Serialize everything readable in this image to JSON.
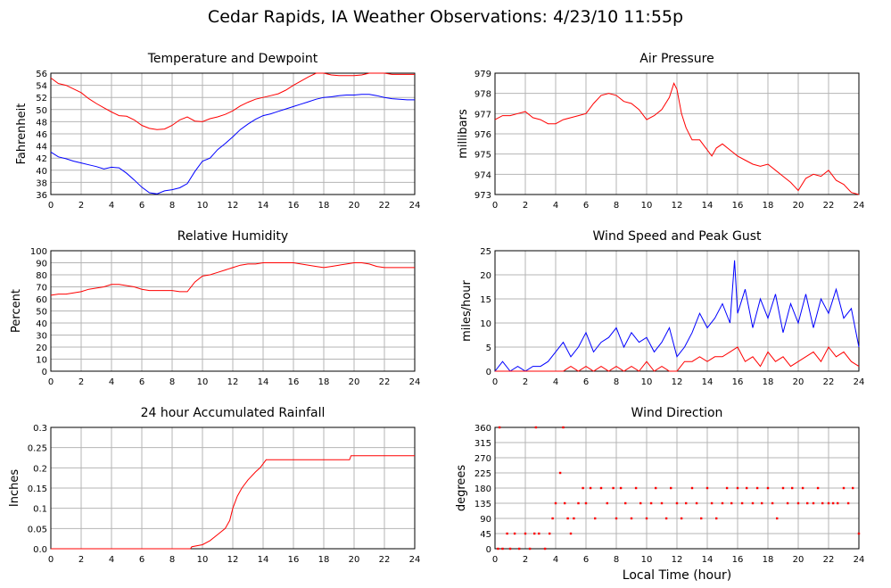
{
  "title": "Cedar Rapids, IA Weather Observations: 4/23/10 11:55p",
  "xlabel_shared": "Local Time (hour)",
  "colors": {
    "red": "#ff0000",
    "blue": "#0000ff",
    "grid": "#b4b4b4",
    "axis": "#000000"
  },
  "chart_data": [
    {
      "type": "line",
      "title": "Temperature and Dewpoint",
      "xlabel": "",
      "ylabel": "Fahrenheit",
      "xlim": [
        0,
        24
      ],
      "ylim": [
        36,
        56
      ],
      "xticks": [
        0,
        2,
        4,
        6,
        8,
        10,
        12,
        14,
        16,
        18,
        20,
        22,
        24
      ],
      "yticks": [
        36,
        38,
        40,
        42,
        44,
        46,
        48,
        50,
        52,
        54,
        56
      ],
      "grid": true,
      "series": [
        {
          "color": "#ff0000",
          "x": [
            0,
            0.5,
            1,
            1.5,
            2,
            2.5,
            3,
            3.5,
            4,
            4.5,
            5,
            5.5,
            6,
            6.5,
            7,
            7.5,
            8,
            8.5,
            9,
            9.5,
            10,
            10.5,
            11,
            11.5,
            12,
            12.5,
            13,
            13.5,
            14,
            14.5,
            15,
            15.5,
            16,
            16.5,
            17,
            17.5,
            18,
            18.5,
            19,
            19.5,
            20,
            20.5,
            21,
            21.5,
            22,
            22.5,
            23,
            23.5,
            24
          ],
          "y": [
            55.2,
            54.3,
            54,
            53.4,
            52.8,
            51.8,
            51,
            50.3,
            49.6,
            49,
            48.9,
            48.3,
            47.4,
            46.9,
            46.7,
            46.8,
            47.4,
            48.3,
            48.8,
            48.1,
            48,
            48.5,
            48.8,
            49.2,
            49.8,
            50.6,
            51.2,
            51.7,
            52,
            52.3,
            52.6,
            53.2,
            54,
            54.7,
            55.4,
            56,
            56,
            55.7,
            55.6,
            55.6,
            55.6,
            55.7,
            56,
            56,
            56,
            55.8,
            55.8,
            55.8,
            55.8
          ]
        },
        {
          "color": "#0000ff",
          "x": [
            0,
            0.5,
            1,
            1.5,
            2,
            2.5,
            3,
            3.5,
            4,
            4.5,
            5,
            5.5,
            6,
            6.5,
            7,
            7.5,
            8,
            8.5,
            9,
            9.5,
            10,
            10.5,
            11,
            11.5,
            12,
            12.5,
            13,
            13.5,
            14,
            14.5,
            15,
            15.5,
            16,
            16.5,
            17,
            17.5,
            18,
            18.5,
            19,
            19.5,
            20,
            20.5,
            21,
            21.5,
            22,
            22.5,
            23,
            23.5,
            24
          ],
          "y": [
            43,
            42.2,
            41.9,
            41.5,
            41.2,
            40.9,
            40.6,
            40.2,
            40.5,
            40.4,
            39.5,
            38.4,
            37.2,
            36.3,
            36.1,
            36.6,
            36.8,
            37.1,
            37.8,
            39.8,
            41.5,
            42,
            43.4,
            44.4,
            45.5,
            46.7,
            47.6,
            48.4,
            49,
            49.3,
            49.7,
            50.1,
            50.5,
            50.9,
            51.3,
            51.7,
            52,
            52.1,
            52.3,
            52.4,
            52.4,
            52.5,
            52.5,
            52.3,
            52,
            51.8,
            51.7,
            51.6,
            51.6
          ]
        }
      ]
    },
    {
      "type": "line",
      "title": "Air Pressure",
      "xlabel": "",
      "ylabel": "millibars",
      "xlim": [
        0,
        24
      ],
      "ylim": [
        973,
        979
      ],
      "xticks": [
        0,
        2,
        4,
        6,
        8,
        10,
        12,
        14,
        16,
        18,
        20,
        22,
        24
      ],
      "yticks": [
        973,
        974,
        975,
        976,
        977,
        978,
        979
      ],
      "grid": true,
      "series": [
        {
          "color": "#ff0000",
          "x": [
            0,
            0.5,
            1,
            1.5,
            2,
            2.5,
            3,
            3.5,
            4,
            4.5,
            5,
            5.5,
            6,
            6.5,
            7,
            7.5,
            8,
            8.5,
            9,
            9.5,
            10,
            10.5,
            11,
            11.5,
            11.8,
            12,
            12.3,
            12.6,
            13,
            13.5,
            14,
            14.3,
            14.6,
            15,
            15.5,
            16,
            16.5,
            17,
            17.5,
            18,
            18.5,
            19,
            19.5,
            20,
            20.5,
            21,
            21.5,
            22,
            22.5,
            23,
            23.5,
            24
          ],
          "y": [
            976.7,
            976.9,
            976.9,
            977,
            977.1,
            976.8,
            976.7,
            976.5,
            976.5,
            976.7,
            976.8,
            976.9,
            977,
            977.5,
            977.9,
            978,
            977.9,
            977.6,
            977.5,
            977.2,
            976.7,
            976.9,
            977.2,
            977.8,
            978.5,
            978.2,
            977,
            976.3,
            975.7,
            975.7,
            975.2,
            974.9,
            975.3,
            975.5,
            975.2,
            974.9,
            974.7,
            974.5,
            974.4,
            974.5,
            974.2,
            973.9,
            973.6,
            973.2,
            973.8,
            974,
            973.9,
            974.2,
            973.7,
            973.5,
            973.1,
            973
          ]
        }
      ]
    },
    {
      "type": "line",
      "title": "Relative Humidity",
      "xlabel": "",
      "ylabel": "Percent",
      "xlim": [
        0,
        24
      ],
      "ylim": [
        0,
        100
      ],
      "xticks": [
        0,
        2,
        4,
        6,
        8,
        10,
        12,
        14,
        16,
        18,
        20,
        22,
        24
      ],
      "yticks": [
        0,
        10,
        20,
        30,
        40,
        50,
        60,
        70,
        80,
        90,
        100
      ],
      "grid": true,
      "series": [
        {
          "color": "#ff0000",
          "x": [
            0,
            0.5,
            1,
            1.5,
            2,
            2.5,
            3,
            3.5,
            4,
            4.5,
            5,
            5.5,
            6,
            6.5,
            7,
            7.5,
            8,
            8.5,
            9,
            9.5,
            10,
            10.5,
            11,
            11.5,
            12,
            12.5,
            13,
            13.5,
            14,
            14.5,
            15,
            15.5,
            16,
            16.5,
            17,
            17.5,
            18,
            18.5,
            19,
            19.5,
            20,
            20.5,
            21,
            21.5,
            22,
            22.5,
            23,
            23.5,
            24
          ],
          "y": [
            63,
            64,
            64,
            65,
            66,
            68,
            69,
            70,
            72,
            72,
            71,
            70,
            68,
            67,
            67,
            67,
            67,
            66,
            66,
            74,
            79,
            80,
            82,
            84,
            86,
            88,
            89,
            89,
            90,
            90,
            90,
            90,
            90,
            89,
            88,
            87,
            86,
            87,
            88,
            89,
            90,
            90,
            89,
            87,
            86,
            86,
            86,
            86,
            86
          ]
        }
      ]
    },
    {
      "type": "line",
      "title": "Wind Speed and Peak Gust",
      "xlabel": "",
      "ylabel": "miles/hour",
      "xlim": [
        0,
        24
      ],
      "ylim": [
        0,
        25
      ],
      "xticks": [
        0,
        2,
        4,
        6,
        8,
        10,
        12,
        14,
        16,
        18,
        20,
        22,
        24
      ],
      "yticks": [
        0,
        5,
        10,
        15,
        20,
        25
      ],
      "grid": true,
      "series": [
        {
          "color": "#0000ff",
          "x": [
            0,
            0.5,
            1,
            1.5,
            2,
            2.5,
            3,
            3.5,
            4,
            4.5,
            5,
            5.5,
            6,
            6.5,
            7,
            7.5,
            8,
            8.5,
            9,
            9.5,
            10,
            10.5,
            11,
            11.5,
            12,
            12.5,
            13,
            13.5,
            14,
            14.5,
            15,
            15.5,
            15.8,
            16,
            16.5,
            17,
            17.5,
            18,
            18.5,
            19,
            19.5,
            20,
            20.5,
            21,
            21.5,
            22,
            22.5,
            23,
            23.5,
            24
          ],
          "y": [
            0,
            2,
            0,
            1,
            0,
            1,
            1,
            2,
            4,
            6,
            3,
            5,
            8,
            4,
            6,
            7,
            9,
            5,
            8,
            6,
            7,
            4,
            6,
            9,
            3,
            5,
            8,
            12,
            9,
            11,
            14,
            10,
            23,
            12,
            17,
            9,
            15,
            11,
            16,
            8,
            14,
            10,
            16,
            9,
            15,
            12,
            17,
            11,
            13,
            5
          ]
        },
        {
          "color": "#ff0000",
          "x": [
            0,
            0.5,
            1,
            1.5,
            2,
            2.5,
            3,
            3.5,
            4,
            4.5,
            5,
            5.5,
            6,
            6.5,
            7,
            7.5,
            8,
            8.5,
            9,
            9.5,
            10,
            10.5,
            11,
            11.5,
            12,
            12.5,
            13,
            13.5,
            14,
            14.5,
            15,
            15.5,
            16,
            16.5,
            17,
            17.5,
            18,
            18.5,
            19,
            19.5,
            20,
            20.5,
            21,
            21.5,
            22,
            22.5,
            23,
            23.5,
            24
          ],
          "y": [
            0,
            0,
            0,
            0,
            0,
            0,
            0,
            0,
            0,
            0,
            1,
            0,
            1,
            0,
            1,
            0,
            1,
            0,
            1,
            0,
            2,
            0,
            1,
            0,
            0,
            2,
            2,
            3,
            2,
            3,
            3,
            4,
            5,
            2,
            3,
            1,
            4,
            2,
            3,
            1,
            2,
            3,
            4,
            2,
            5,
            3,
            4,
            2,
            1
          ]
        }
      ]
    },
    {
      "type": "line",
      "title": "24 hour Accumulated Rainfall",
      "xlabel": "",
      "ylabel": "Inches",
      "xlim": [
        0,
        24
      ],
      "ylim": [
        0,
        0.3
      ],
      "xticks": [
        0,
        2,
        4,
        6,
        8,
        10,
        12,
        14,
        16,
        18,
        20,
        22,
        24
      ],
      "yticks": [
        "0.0",
        "0.05",
        "0.1",
        "0.15",
        "0.2",
        "0.25",
        "0.3"
      ],
      "ytick_values": [
        0,
        0.05,
        0.1,
        0.15,
        0.2,
        0.25,
        0.3
      ],
      "grid": true,
      "series": [
        {
          "color": "#ff0000",
          "x": [
            0,
            9.2,
            9.3,
            10,
            10.5,
            11,
            11.5,
            11.8,
            12,
            12.3,
            12.6,
            13,
            13.5,
            13.8,
            14,
            14.2,
            19.7,
            19.8,
            24
          ],
          "y": [
            0,
            0,
            0.005,
            0.01,
            0.02,
            0.035,
            0.05,
            0.07,
            0.1,
            0.13,
            0.15,
            0.17,
            0.19,
            0.2,
            0.21,
            0.22,
            0.22,
            0.23,
            0.23
          ]
        }
      ]
    },
    {
      "type": "scatter",
      "title": "Wind Direction",
      "xlabel": "Local Time (hour)",
      "ylabel": "degrees",
      "xlim": [
        0,
        24
      ],
      "ylim": [
        0,
        360
      ],
      "xticks": [
        0,
        2,
        4,
        6,
        8,
        10,
        12,
        14,
        16,
        18,
        20,
        22,
        24
      ],
      "yticks": [
        0,
        45,
        90,
        135,
        180,
        225,
        270,
        315,
        360
      ],
      "grid": true,
      "series": [
        {
          "color": "#ff0000",
          "x": [
            0.2,
            0.3,
            0.5,
            0.8,
            1,
            1.3,
            1.6,
            2,
            2.3,
            2.6,
            2.7,
            2.9,
            3.3,
            3.6,
            3.8,
            4,
            4.3,
            4.5,
            4.6,
            4.8,
            5,
            5.2,
            5.5,
            5.8,
            6,
            6.3,
            6.6,
            7,
            7.4,
            7.8,
            8,
            8.3,
            8.6,
            9,
            9.3,
            9.6,
            10,
            10.3,
            10.6,
            11,
            11.3,
            11.6,
            12,
            12.3,
            12.6,
            13,
            13.3,
            13.6,
            14,
            14.3,
            14.6,
            15,
            15.3,
            15.6,
            16,
            16.3,
            16.6,
            17,
            17.3,
            17.6,
            18,
            18.3,
            18.6,
            19,
            19.3,
            19.6,
            20,
            20.3,
            20.6,
            21,
            21.3,
            21.6,
            22,
            22.3,
            22.6,
            23,
            23.3,
            23.6,
            24
          ],
          "y": [
            0,
            360,
            0,
            45,
            0,
            45,
            0,
            45,
            0,
            45,
            360,
            45,
            0,
            45,
            90,
            135,
            225,
            360,
            135,
            90,
            45,
            90,
            135,
            180,
            135,
            180,
            90,
            180,
            135,
            180,
            90,
            180,
            135,
            90,
            180,
            135,
            90,
            135,
            180,
            135,
            90,
            180,
            135,
            90,
            135,
            180,
            135,
            90,
            180,
            135,
            90,
            135,
            180,
            135,
            180,
            135,
            180,
            135,
            180,
            135,
            180,
            135,
            90,
            180,
            135,
            180,
            135,
            180,
            135,
            135,
            180,
            135,
            135,
            135,
            135,
            180,
            135,
            180,
            45
          ]
        }
      ]
    }
  ]
}
